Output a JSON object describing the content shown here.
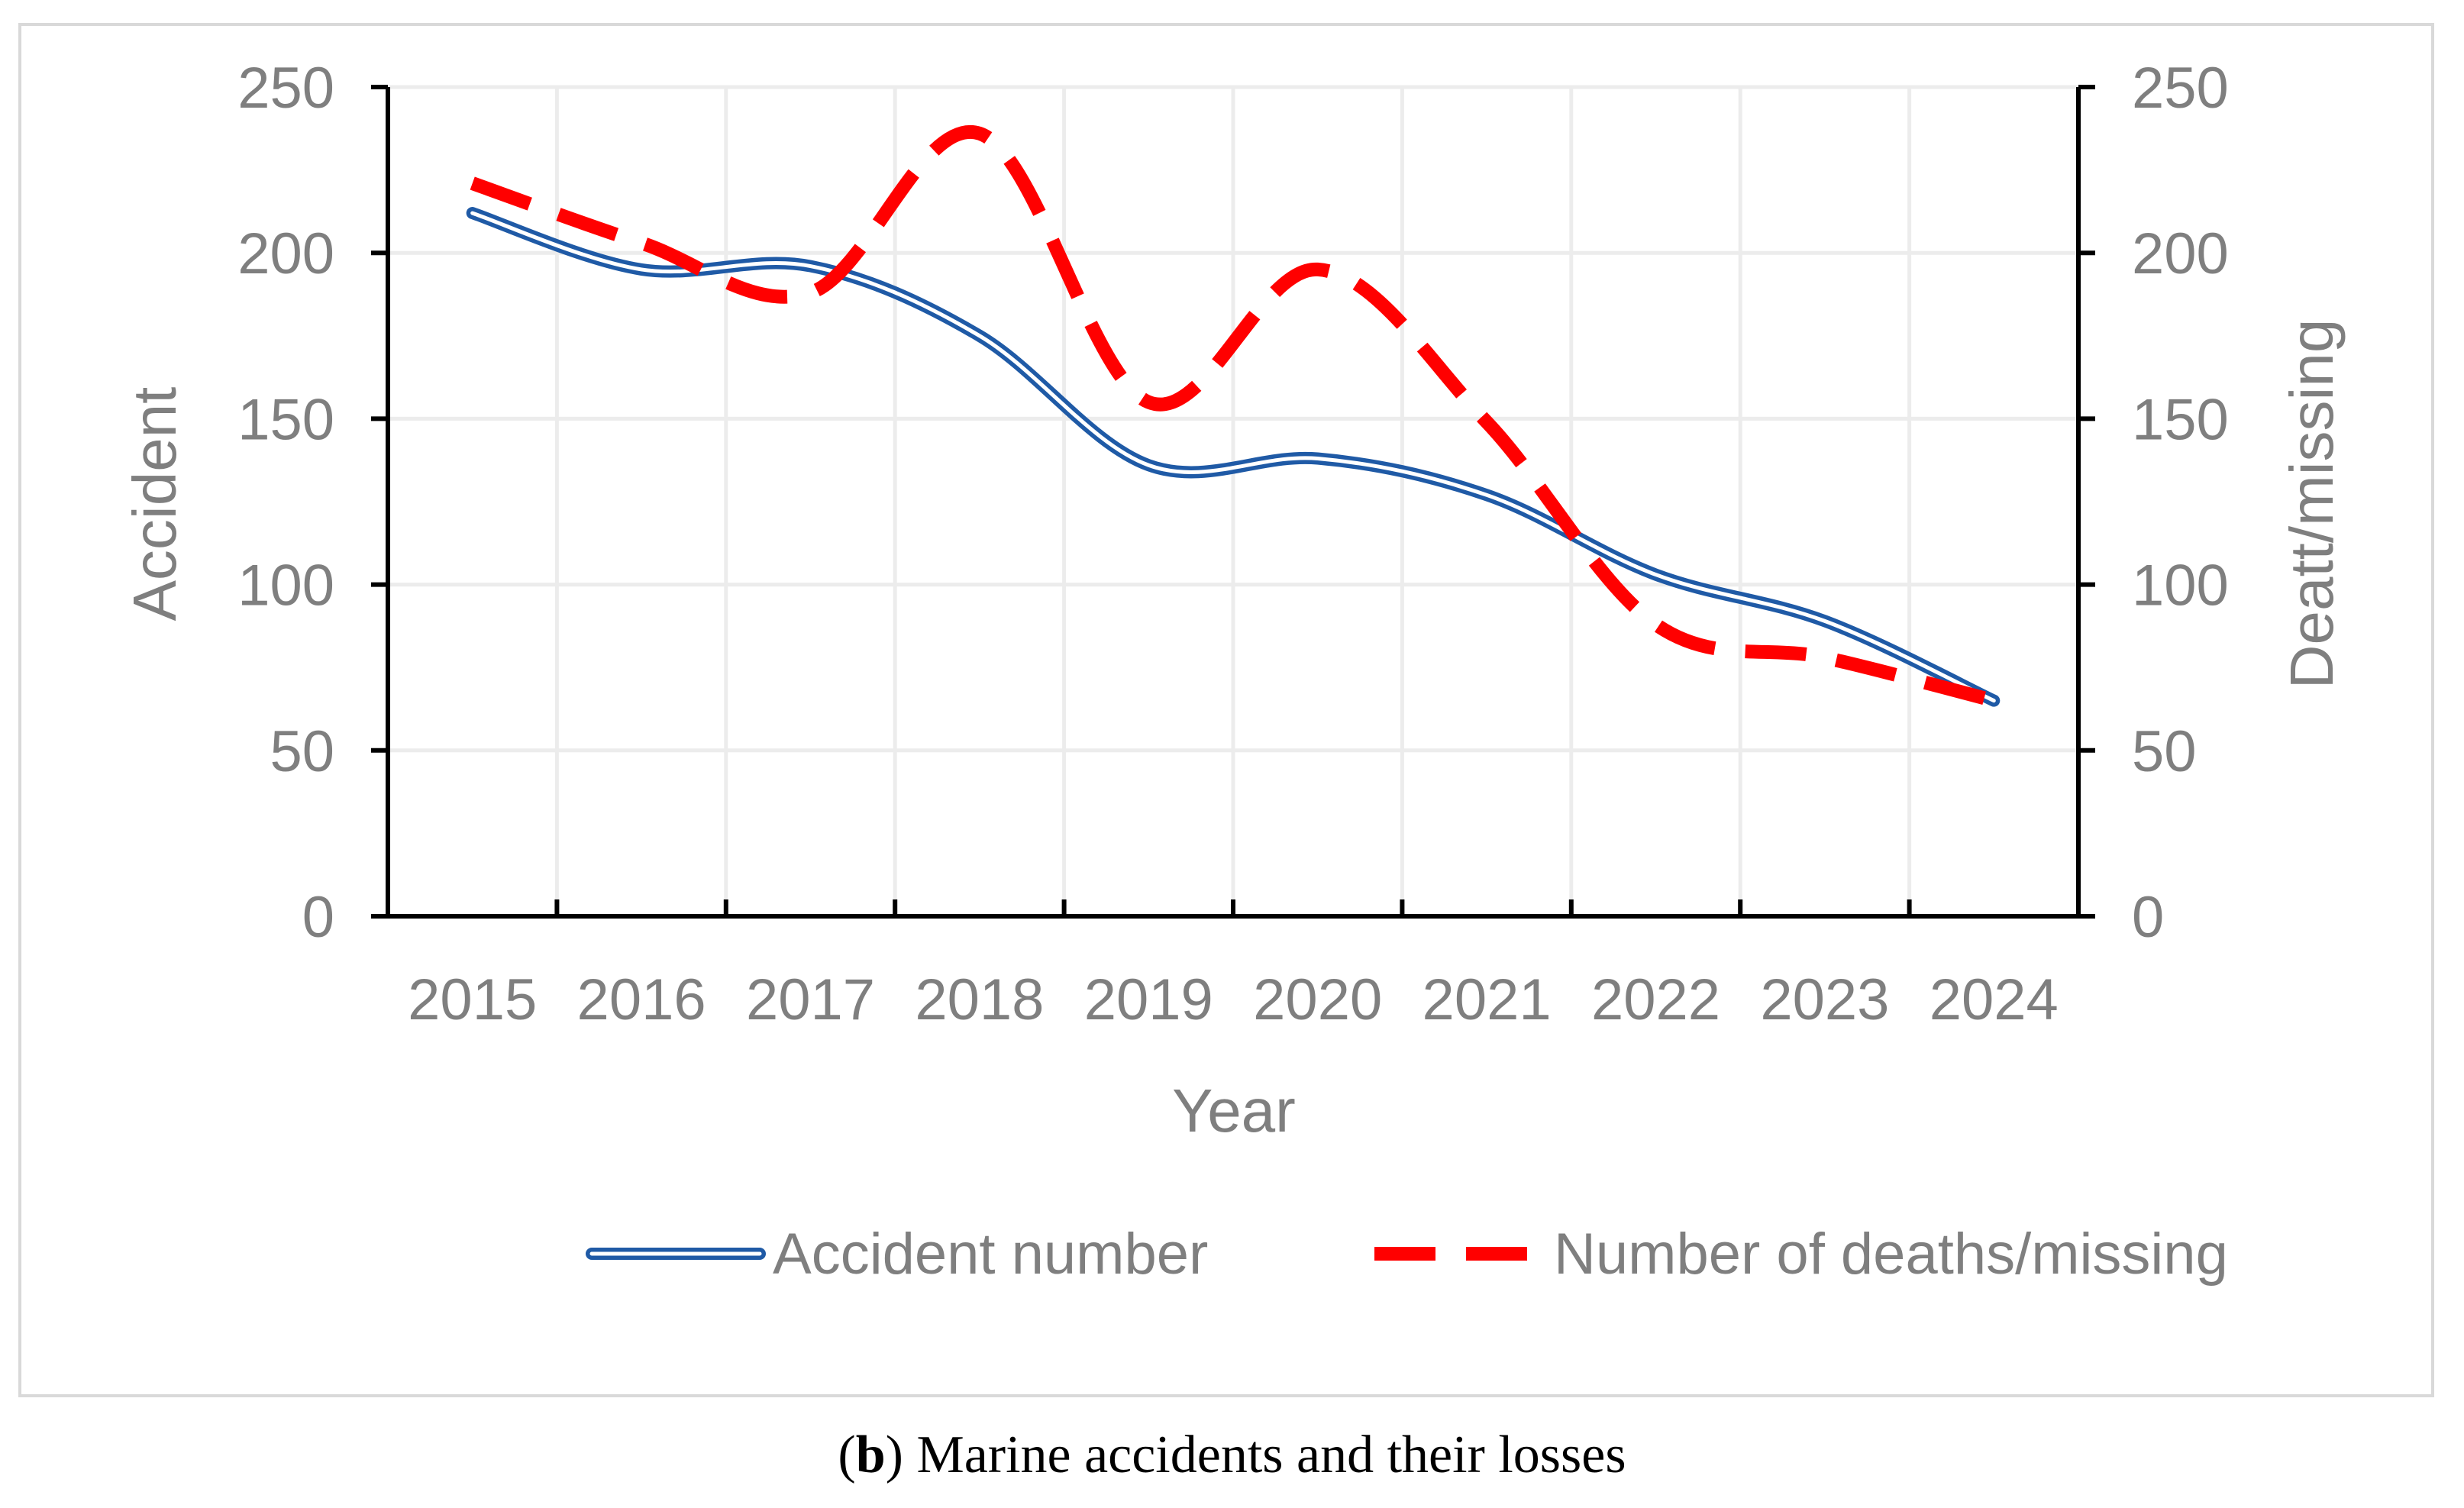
{
  "chart_data": {
    "type": "line",
    "title": "",
    "xlabel": "Year",
    "ylabel": "Accident",
    "y2label": "Deatt/missing",
    "categories": [
      "2015",
      "2016",
      "2017",
      "2018",
      "2019",
      "2020",
      "2021",
      "2022",
      "2023",
      "2024"
    ],
    "ylim": [
      0,
      250
    ],
    "y2lim": [
      0,
      250
    ],
    "yticks": [
      0,
      50,
      100,
      150,
      200,
      250
    ],
    "y2ticks": [
      0,
      50,
      100,
      150,
      200,
      250
    ],
    "grid": true,
    "legend_position": "bottom",
    "series": [
      {
        "name": "Accident number",
        "axis": "left",
        "style": "double-line",
        "color": "#1f5aa6",
        "values": [
          212,
          195,
          196,
          175,
          136,
          138,
          127,
          103,
          89,
          65
        ]
      },
      {
        "name": "Number of deaths/missing",
        "axis": "right",
        "style": "dashed",
        "color": "#ff0000",
        "values": [
          221,
          203,
          188,
          236,
          155,
          195,
          149,
          88,
          78,
          65
        ]
      }
    ]
  },
  "caption": {
    "label": "b",
    "text": ") Marine accidents and their losses",
    "open_paren": "("
  }
}
